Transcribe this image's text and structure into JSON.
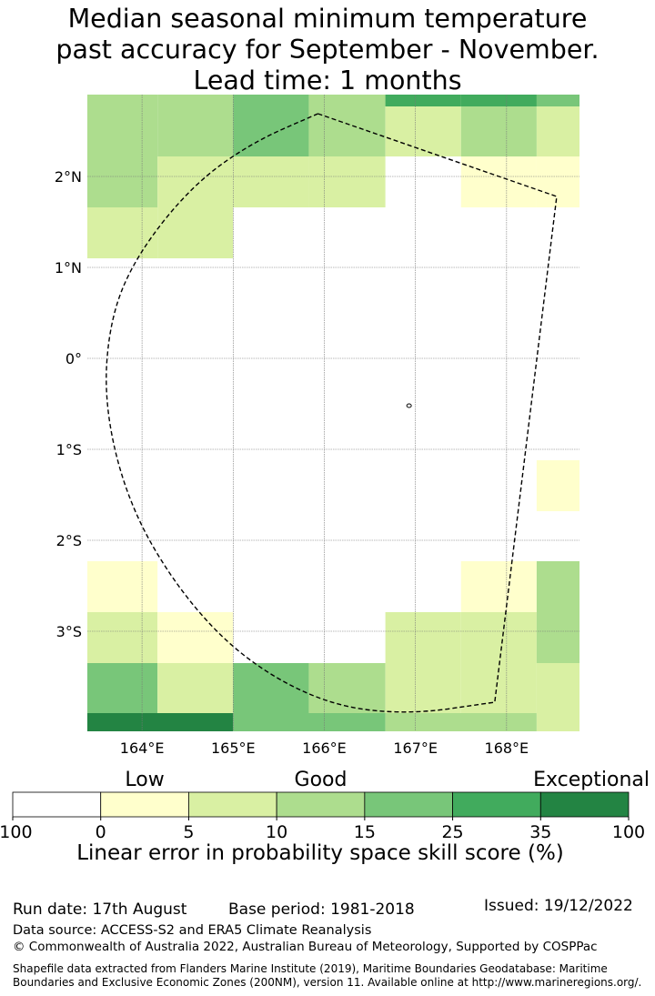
{
  "title": {
    "line1": "Median seasonal minimum temperature",
    "line2": "past accuracy for September - November.",
    "line3": "Lead time: 1 months"
  },
  "map": {
    "lon_range": [
      163.4,
      168.8
    ],
    "lat_range": [
      -4.1,
      2.9
    ],
    "lon_ticks": [
      {
        "value": 164,
        "label": "164°E"
      },
      {
        "value": 165,
        "label": "165°E"
      },
      {
        "value": 166,
        "label": "166°E"
      },
      {
        "value": 167,
        "label": "167°E"
      },
      {
        "value": 168,
        "label": "168°E"
      }
    ],
    "lat_ticks": [
      {
        "value": 2,
        "label": "2°N"
      },
      {
        "value": 1,
        "label": "1°N"
      },
      {
        "value": 0,
        "label": "0°"
      },
      {
        "value": -1,
        "label": "1°S"
      },
      {
        "value": -2,
        "label": "2°S"
      },
      {
        "value": -3,
        "label": "3°S"
      }
    ],
    "grid": true,
    "cells": [
      {
        "lon": [
          163.4,
          164.17
        ],
        "lat": [
          2.22,
          2.9
        ],
        "color": "#addd8e"
      },
      {
        "lon": [
          164.17,
          165.0
        ],
        "lat": [
          2.22,
          2.9
        ],
        "color": "#addd8e"
      },
      {
        "lon": [
          165.0,
          165.83
        ],
        "lat": [
          2.22,
          2.9
        ],
        "color": "#78c679"
      },
      {
        "lon": [
          165.83,
          166.67
        ],
        "lat": [
          2.22,
          2.9
        ],
        "color": "#addd8e"
      },
      {
        "lon": [
          166.67,
          167.5
        ],
        "lat": [
          2.22,
          2.9
        ],
        "color": "#d9f0a3"
      },
      {
        "lon": [
          167.5,
          168.33
        ],
        "lat": [
          2.22,
          2.9
        ],
        "color": "#addd8e"
      },
      {
        "lon": [
          168.33,
          168.8
        ],
        "lat": [
          2.22,
          2.9
        ],
        "color": "#d9f0a3"
      },
      {
        "lon": [
          166.67,
          167.5
        ],
        "lat": [
          2.77,
          2.9
        ],
        "color": "#41ab5d"
      },
      {
        "lon": [
          167.5,
          168.33
        ],
        "lat": [
          2.77,
          2.9
        ],
        "color": "#41ab5d"
      },
      {
        "lon": [
          168.33,
          168.8
        ],
        "lat": [
          2.77,
          2.9
        ],
        "color": "#78c679"
      },
      {
        "lon": [
          163.4,
          164.17
        ],
        "lat": [
          1.66,
          2.22
        ],
        "color": "#addd8e"
      },
      {
        "lon": [
          164.17,
          165.0
        ],
        "lat": [
          1.66,
          2.22
        ],
        "color": "#d9f0a3"
      },
      {
        "lon": [
          165.0,
          165.83
        ],
        "lat": [
          1.66,
          2.22
        ],
        "color": "#d9f0a3"
      },
      {
        "lon": [
          165.83,
          166.67
        ],
        "lat": [
          1.66,
          2.22
        ],
        "color": "#d9f0a3"
      },
      {
        "lon": [
          167.5,
          168.33
        ],
        "lat": [
          1.66,
          2.22
        ],
        "color": "#ffffcc"
      },
      {
        "lon": [
          168.33,
          168.8
        ],
        "lat": [
          1.66,
          2.22
        ],
        "color": "#ffffcc"
      },
      {
        "lon": [
          163.4,
          164.17
        ],
        "lat": [
          1.1,
          1.66
        ],
        "color": "#d9f0a3"
      },
      {
        "lon": [
          164.17,
          165.0
        ],
        "lat": [
          1.1,
          1.66
        ],
        "color": "#d9f0a3"
      },
      {
        "lon": [
          168.33,
          168.8
        ],
        "lat": [
          -1.68,
          -1.12
        ],
        "color": "#ffffcc"
      },
      {
        "lon": [
          163.4,
          164.17
        ],
        "lat": [
          -2.79,
          -2.23
        ],
        "color": "#ffffcc"
      },
      {
        "lon": [
          167.5,
          168.33
        ],
        "lat": [
          -2.79,
          -2.23
        ],
        "color": "#ffffcc"
      },
      {
        "lon": [
          168.33,
          168.8
        ],
        "lat": [
          -2.79,
          -2.23
        ],
        "color": "#addd8e"
      },
      {
        "lon": [
          163.4,
          164.17
        ],
        "lat": [
          -3.35,
          -2.79
        ],
        "color": "#d9f0a3"
      },
      {
        "lon": [
          164.17,
          165.0
        ],
        "lat": [
          -3.35,
          -2.79
        ],
        "color": "#ffffcc"
      },
      {
        "lon": [
          166.67,
          167.5
        ],
        "lat": [
          -3.35,
          -2.79
        ],
        "color": "#d9f0a3"
      },
      {
        "lon": [
          167.5,
          168.33
        ],
        "lat": [
          -3.35,
          -2.79
        ],
        "color": "#d9f0a3"
      },
      {
        "lon": [
          168.33,
          168.8
        ],
        "lat": [
          -3.35,
          -2.79
        ],
        "color": "#addd8e"
      },
      {
        "lon": [
          163.4,
          164.17
        ],
        "lat": [
          -3.9,
          -3.35
        ],
        "color": "#78c679"
      },
      {
        "lon": [
          164.17,
          165.0
        ],
        "lat": [
          -3.9,
          -3.35
        ],
        "color": "#d9f0a3"
      },
      {
        "lon": [
          165.0,
          165.83
        ],
        "lat": [
          -3.9,
          -3.35
        ],
        "color": "#78c679"
      },
      {
        "lon": [
          165.83,
          166.67
        ],
        "lat": [
          -3.9,
          -3.35
        ],
        "color": "#addd8e"
      },
      {
        "lon": [
          166.67,
          167.5
        ],
        "lat": [
          -3.9,
          -3.35
        ],
        "color": "#d9f0a3"
      },
      {
        "lon": [
          167.5,
          168.33
        ],
        "lat": [
          -3.9,
          -3.35
        ],
        "color": "#d9f0a3"
      },
      {
        "lon": [
          168.33,
          168.8
        ],
        "lat": [
          -3.9,
          -3.35
        ],
        "color": "#d9f0a3"
      },
      {
        "lon": [
          163.4,
          165.0
        ],
        "lat": [
          -4.1,
          -3.9
        ],
        "color": "#238443"
      },
      {
        "lon": [
          165.0,
          166.67
        ],
        "lat": [
          -4.1,
          -3.9
        ],
        "color": "#78c679"
      },
      {
        "lon": [
          166.67,
          168.33
        ],
        "lat": [
          -4.1,
          -3.9
        ],
        "color": "#addd8e"
      },
      {
        "lon": [
          168.33,
          168.8
        ],
        "lat": [
          -4.1,
          -3.9
        ],
        "color": "#d9f0a3"
      }
    ],
    "eez_boundary": [
      [
        165.93,
        2.69
      ],
      [
        168.55,
        1.78
      ],
      [
        167.87,
        -3.78
      ],
      [
        166.9,
        -3.92
      ],
      [
        166.0,
        -3.8
      ],
      [
        165.1,
        -3.3
      ],
      [
        164.4,
        -2.55
      ],
      [
        163.85,
        -1.6
      ],
      [
        163.58,
        -0.5
      ],
      [
        163.65,
        0.45
      ],
      [
        163.95,
        1.15
      ],
      [
        164.55,
        1.9
      ],
      [
        165.2,
        2.37
      ],
      [
        165.93,
        2.69
      ]
    ],
    "island": {
      "lon": 166.93,
      "lat": -0.52
    }
  },
  "legend": {
    "categories": [
      {
        "text": "Low",
        "pos": 1.5
      },
      {
        "text": "Good",
        "pos": 3.5
      },
      {
        "text": "Exceptional",
        "pos": 6.5
      }
    ],
    "colors": [
      "#ffffff",
      "#ffffcc",
      "#d9f0a3",
      "#addd8e",
      "#78c679",
      "#41ab5d",
      "#238443"
    ],
    "ticks": [
      "-100",
      "0",
      "5",
      "10",
      "15",
      "25",
      "35",
      "100"
    ],
    "label": "Linear error in probability space skill score (%)"
  },
  "footer": {
    "run_date": "Run date: 17th August",
    "base_period": "Base period: 1981-2018",
    "issued": "Issued: 19/12/2022",
    "data_source": "Data source: ACCESS-S2 and ERA5 Climate Reanalysis",
    "copyright": "© Commonwealth of Australia 2022, Australian Bureau of Meteorology, Supported by COSPPac",
    "shapefile_line1": "Shapefile data extracted from Flanders Marine Institute (2019), Maritime Boundaries Geodatabase: Maritime",
    "shapefile_line2": "Boundaries and Exclusive Economic Zones (200NM), version 11. Available online at http://www.marineregions.org/."
  }
}
